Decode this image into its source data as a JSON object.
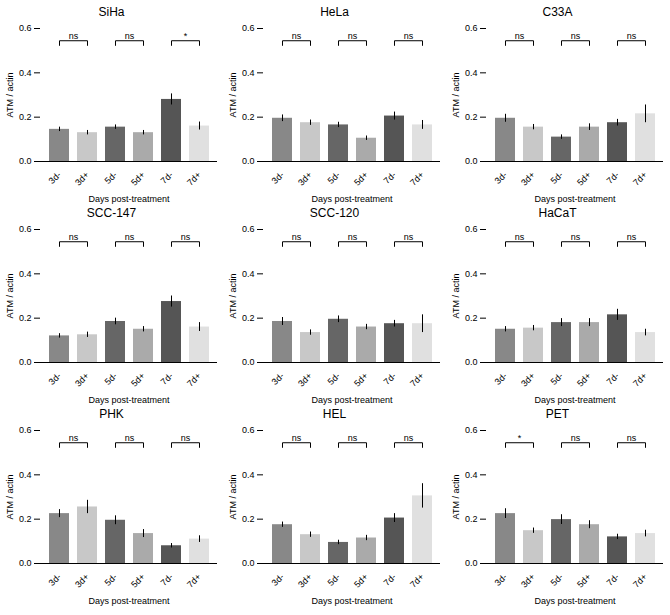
{
  "chart_data": [
    {
      "type": "bar",
      "title": "SiHa",
      "categories": [
        "3d-",
        "3d+",
        "5d-",
        "5d+",
        "7d-",
        "7d+"
      ],
      "values": [
        0.145,
        0.13,
        0.155,
        0.13,
        0.28,
        0.16
      ],
      "errors": [
        0.01,
        0.01,
        0.01,
        0.01,
        0.025,
        0.018
      ],
      "colors": [
        "#888888",
        "#c8c8c8",
        "#666666",
        "#aaaaaa",
        "#555555",
        "#e0e0e0"
      ],
      "xlabel": "Days post-treatment",
      "ylabel": "ATM / actin",
      "ylim": [
        0,
        0.6
      ],
      "yticks": [
        {
          "value": 0,
          "label": "0.0"
        },
        0.2,
        0.4,
        0.6
      ],
      "grid": false,
      "annotations": [
        {
          "text": "ns",
          "between": [
            "3d-",
            "3d+"
          ]
        },
        {
          "text": "ns",
          "between": [
            "5d-",
            "5d+"
          ]
        },
        {
          "text": "*",
          "between": [
            "7d-",
            "7d+"
          ]
        }
      ]
    },
    {
      "type": "bar",
      "title": "HeLa",
      "categories": [
        "3d-",
        "3d+",
        "5d-",
        "5d+",
        "7d-",
        "7d+"
      ],
      "values": [
        0.195,
        0.175,
        0.165,
        0.105,
        0.205,
        0.165
      ],
      "errors": [
        0.015,
        0.012,
        0.012,
        0.01,
        0.018,
        0.02
      ],
      "colors": [
        "#888888",
        "#c8c8c8",
        "#666666",
        "#aaaaaa",
        "#555555",
        "#e0e0e0"
      ],
      "xlabel": "Days post-treatment",
      "ylabel": "ATM / actin",
      "ylim": [
        0,
        0.6
      ],
      "yticks": [
        {
          "value": 0,
          "label": "0.0"
        },
        0.2,
        0.4,
        0.6
      ],
      "grid": false,
      "annotations": [
        {
          "text": "ns",
          "between": [
            "3d-",
            "3d+"
          ]
        },
        {
          "text": "ns",
          "between": [
            "5d-",
            "5d+"
          ]
        },
        {
          "text": "ns",
          "between": [
            "7d-",
            "7d+"
          ]
        }
      ]
    },
    {
      "type": "bar",
      "title": "C33A",
      "categories": [
        "3d-",
        "3d+",
        "5d-",
        "5d+",
        "7d-",
        "7d+"
      ],
      "values": [
        0.195,
        0.155,
        0.11,
        0.155,
        0.175,
        0.215
      ],
      "errors": [
        0.018,
        0.012,
        0.01,
        0.015,
        0.015,
        0.04
      ],
      "colors": [
        "#888888",
        "#c8c8c8",
        "#666666",
        "#aaaaaa",
        "#555555",
        "#e0e0e0"
      ],
      "xlabel": "Days post-treatment",
      "ylabel": "ATM / actin",
      "ylim": [
        0,
        0.6
      ],
      "yticks": [
        {
          "value": 0,
          "label": "0.0"
        },
        0.2,
        0.4,
        0.6
      ],
      "grid": false,
      "annotations": [
        {
          "text": "ns",
          "between": [
            "3d-",
            "3d+"
          ]
        },
        {
          "text": "ns",
          "between": [
            "5d-",
            "5d+"
          ]
        },
        {
          "text": "ns",
          "between": [
            "7d-",
            "7d+"
          ]
        }
      ]
    },
    {
      "type": "bar",
      "title": "SCC-147",
      "categories": [
        "3d-",
        "3d+",
        "5d-",
        "5d+",
        "7d-",
        "7d+"
      ],
      "values": [
        0.12,
        0.125,
        0.185,
        0.15,
        0.275,
        0.16
      ],
      "errors": [
        0.01,
        0.012,
        0.015,
        0.012,
        0.025,
        0.02
      ],
      "colors": [
        "#888888",
        "#c8c8c8",
        "#666666",
        "#aaaaaa",
        "#555555",
        "#e0e0e0"
      ],
      "xlabel": "Days post-treatment",
      "ylabel": "ATM / actin",
      "ylim": [
        0,
        0.6
      ],
      "yticks": [
        {
          "value": 0,
          "label": "0.0"
        },
        0.2,
        0.4,
        0.6
      ],
      "grid": false,
      "annotations": [
        {
          "text": "ns",
          "between": [
            "3d-",
            "3d+"
          ]
        },
        {
          "text": "ns",
          "between": [
            "5d-",
            "5d+"
          ]
        },
        {
          "text": "ns",
          "between": [
            "7d-",
            "7d+"
          ]
        }
      ]
    },
    {
      "type": "bar",
      "title": "SCC-120",
      "categories": [
        "3d-",
        "3d+",
        "5d-",
        "5d+",
        "7d-",
        "7d+"
      ],
      "values": [
        0.185,
        0.135,
        0.195,
        0.16,
        0.175,
        0.175
      ],
      "errors": [
        0.018,
        0.012,
        0.015,
        0.012,
        0.015,
        0.04
      ],
      "colors": [
        "#888888",
        "#c8c8c8",
        "#666666",
        "#aaaaaa",
        "#555555",
        "#e0e0e0"
      ],
      "xlabel": "Days post-treatment",
      "ylabel": "ATM / actin",
      "ylim": [
        0,
        0.6
      ],
      "yticks": [
        {
          "value": 0,
          "label": "0.0"
        },
        0.2,
        0.4,
        0.6
      ],
      "grid": false,
      "annotations": [
        {
          "text": "ns",
          "between": [
            "3d-",
            "3d+"
          ]
        },
        {
          "text": "ns",
          "between": [
            "5d-",
            "5d+"
          ]
        },
        {
          "text": "ns",
          "between": [
            "7d-",
            "7d+"
          ]
        }
      ]
    },
    {
      "type": "bar",
      "title": "HaCaT",
      "categories": [
        "3d-",
        "3d+",
        "5d-",
        "5d+",
        "7d-",
        "7d+"
      ],
      "values": [
        0.15,
        0.155,
        0.18,
        0.18,
        0.215,
        0.135
      ],
      "errors": [
        0.012,
        0.012,
        0.018,
        0.018,
        0.025,
        0.015
      ],
      "colors": [
        "#888888",
        "#c8c8c8",
        "#666666",
        "#aaaaaa",
        "#555555",
        "#e0e0e0"
      ],
      "xlabel": "Days post-treatment",
      "ylabel": "ATM / actin",
      "ylim": [
        0,
        0.6
      ],
      "yticks": [
        {
          "value": 0,
          "label": "0.0"
        },
        0.2,
        0.4,
        0.6
      ],
      "grid": false,
      "annotations": [
        {
          "text": "ns",
          "between": [
            "3d-",
            "3d+"
          ]
        },
        {
          "text": "ns",
          "between": [
            "5d-",
            "5d+"
          ]
        },
        {
          "text": "ns",
          "between": [
            "7d-",
            "7d+"
          ]
        }
      ]
    },
    {
      "type": "bar",
      "title": "PHK",
      "categories": [
        "3d-",
        "3d+",
        "5d-",
        "5d+",
        "7d-",
        "7d+"
      ],
      "values": [
        0.225,
        0.255,
        0.195,
        0.135,
        0.08,
        0.11
      ],
      "errors": [
        0.018,
        0.03,
        0.02,
        0.018,
        0.01,
        0.015
      ],
      "colors": [
        "#888888",
        "#c8c8c8",
        "#666666",
        "#aaaaaa",
        "#555555",
        "#e0e0e0"
      ],
      "xlabel": "Days post-treatment",
      "ylabel": "ATM / actin",
      "ylim": [
        0,
        0.6
      ],
      "yticks": [
        {
          "value": 0,
          "label": "0.0"
        },
        0.2,
        0.4,
        0.6
      ],
      "grid": false,
      "annotations": [
        {
          "text": "ns",
          "between": [
            "3d-",
            "3d+"
          ]
        },
        {
          "text": "ns",
          "between": [
            "5d-",
            "5d+"
          ]
        },
        {
          "text": "ns",
          "between": [
            "7d-",
            "7d+"
          ]
        }
      ]
    },
    {
      "type": "bar",
      "title": "HEL",
      "categories": [
        "3d-",
        "3d+",
        "5d-",
        "5d+",
        "7d-",
        "7d+"
      ],
      "values": [
        0.175,
        0.13,
        0.095,
        0.115,
        0.205,
        0.305
      ],
      "errors": [
        0.012,
        0.012,
        0.01,
        0.012,
        0.02,
        0.055
      ],
      "colors": [
        "#888888",
        "#c8c8c8",
        "#666666",
        "#aaaaaa",
        "#555555",
        "#e0e0e0"
      ],
      "xlabel": "Days post-treatment",
      "ylabel": "ATM / actin",
      "ylim": [
        0,
        0.6
      ],
      "yticks": [
        {
          "value": 0,
          "label": "0.0"
        },
        0.2,
        0.4,
        0.6
      ],
      "grid": false,
      "annotations": [
        {
          "text": "ns",
          "between": [
            "3d-",
            "3d+"
          ]
        },
        {
          "text": "ns",
          "between": [
            "5d-",
            "5d+"
          ]
        },
        {
          "text": "ns",
          "between": [
            "7d-",
            "7d+"
          ]
        }
      ]
    },
    {
      "type": "bar",
      "title": "PET",
      "categories": [
        "3d-",
        "3d+",
        "5d-",
        "5d+",
        "7d-",
        "7d+"
      ],
      "values": [
        0.225,
        0.148,
        0.198,
        0.175,
        0.12,
        0.135
      ],
      "errors": [
        0.022,
        0.012,
        0.022,
        0.018,
        0.012,
        0.015
      ],
      "colors": [
        "#888888",
        "#c8c8c8",
        "#666666",
        "#aaaaaa",
        "#555555",
        "#e0e0e0"
      ],
      "xlabel": "Days post-treatment",
      "ylabel": "ATM / actin",
      "ylim": [
        0,
        0.6
      ],
      "yticks": [
        {
          "value": 0,
          "label": "0.0"
        },
        0.2,
        0.4,
        0.6
      ],
      "grid": false,
      "annotations": [
        {
          "text": "*",
          "between": [
            "3d-",
            "3d+"
          ]
        },
        {
          "text": "ns",
          "between": [
            "5d-",
            "5d+"
          ]
        },
        {
          "text": "ns",
          "between": [
            "7d-",
            "7d+"
          ]
        }
      ]
    }
  ]
}
